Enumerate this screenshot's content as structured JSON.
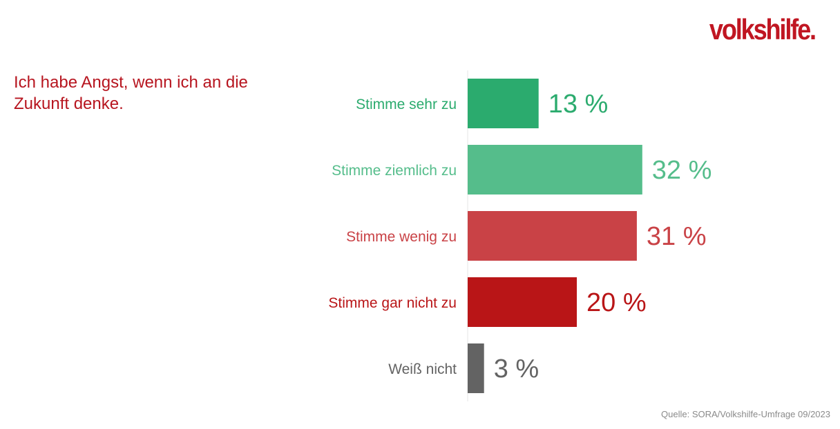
{
  "logo_text": "volkshilfe.",
  "title": "Ich habe Angst, wenn ich an die Zukunft denke.",
  "source": "Quelle: SORA/Volkshilfe-Umfrage 09/2023",
  "colors": {
    "title": "#b7151f",
    "logo": "#c01622",
    "axis": "#e6e6e6"
  },
  "chart_data": {
    "type": "bar",
    "orientation": "horizontal",
    "categories": [
      "Stimme sehr zu",
      "Stimme ziemlich zu",
      "Stimme wenig zu",
      "Stimme gar nicht zu",
      "Weiß nicht"
    ],
    "values": [
      13,
      32,
      31,
      20,
      3
    ],
    "value_labels": [
      "13 %",
      "32 %",
      "31 %",
      "20 %",
      "3 %"
    ],
    "colors": [
      "#2bab6e",
      "#55bd8b",
      "#c94246",
      "#b91517",
      "#636363"
    ],
    "unit": "%",
    "title": "Ich habe Angst, wenn ich an die Zukunft denke.",
    "xlim": [
      0,
      100
    ],
    "grid": false,
    "legend": "none"
  }
}
